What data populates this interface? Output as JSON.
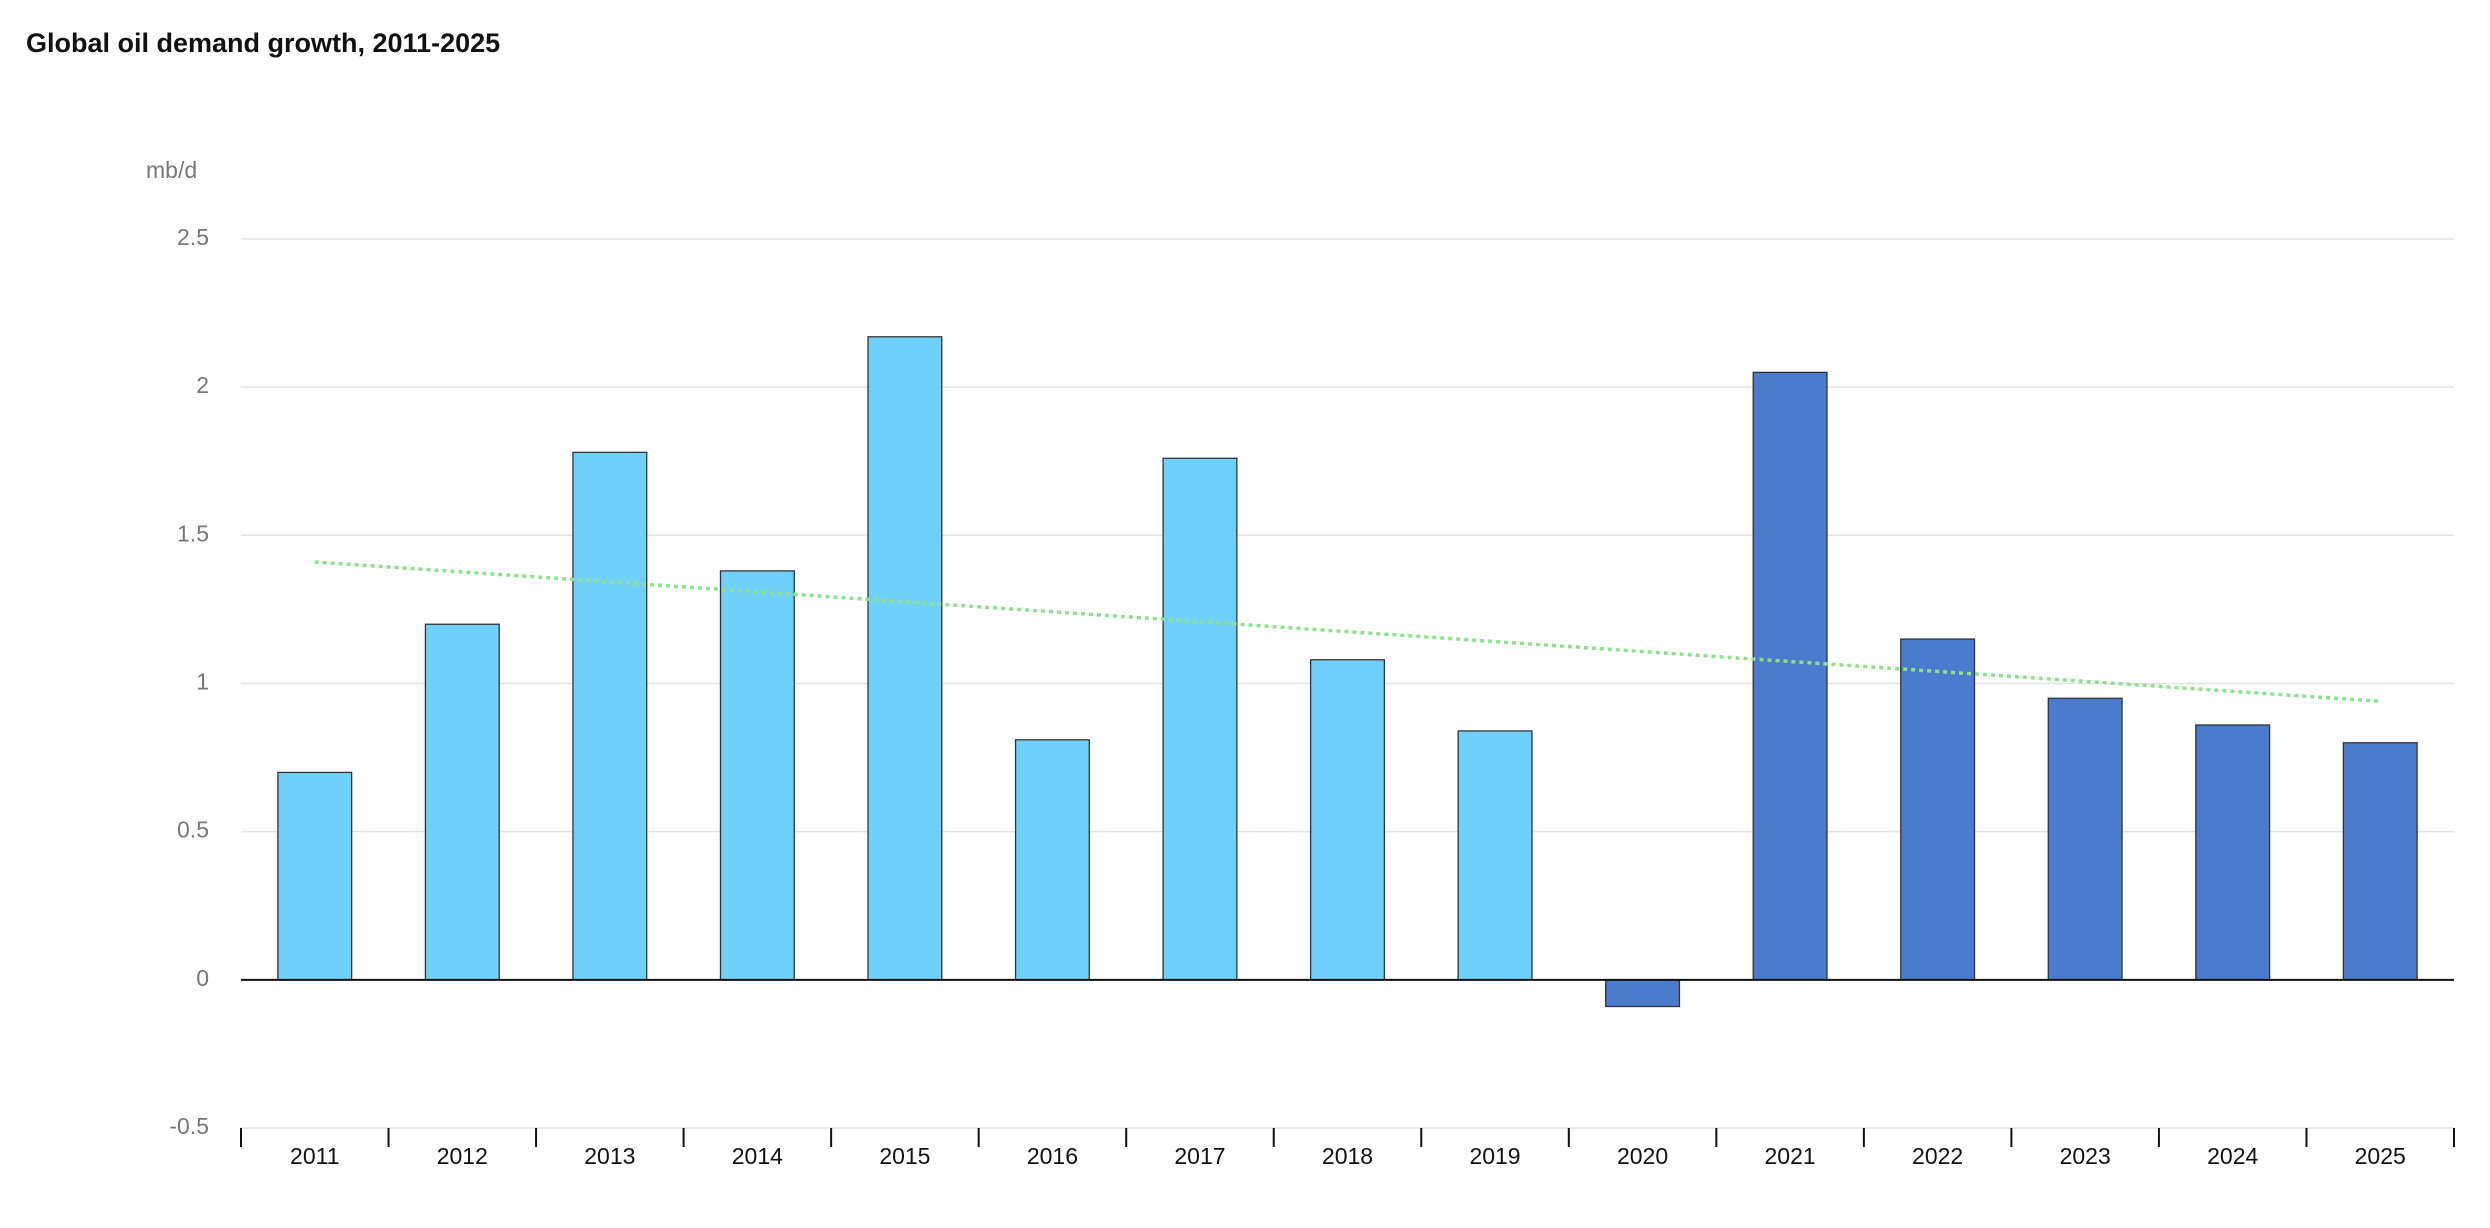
{
  "chart_data": {
    "type": "bar",
    "title": "Global oil demand growth, 2011-2025",
    "y_label": "mb/d",
    "categories": [
      "2011",
      "2012",
      "2013",
      "2014",
      "2015",
      "2016",
      "2017",
      "2018",
      "2019",
      "2020",
      "2021",
      "2022",
      "2023",
      "2024",
      "2025"
    ],
    "values": [
      0.7,
      1.2,
      1.78,
      1.38,
      2.17,
      0.81,
      1.76,
      1.08,
      0.84,
      -0.09,
      2.05,
      1.15,
      0.95,
      0.86,
      0.8
    ],
    "colors": [
      "#6fd1fa",
      "#6fd1fa",
      "#6fd1fa",
      "#6fd1fa",
      "#6fd1fa",
      "#6fd1fa",
      "#6fd1fa",
      "#6fd1fa",
      "#6fd1fa",
      "#4a7bcd",
      "#4a7bcd",
      "#4a7bcd",
      "#4a7bcd",
      "#4a7bcd",
      "#4a7bcd"
    ],
    "trendline": {
      "color": "#8ee08e",
      "values": [
        1.41,
        0.94
      ]
    },
    "ylim": [
      -0.5,
      2.5
    ],
    "yticks": [
      -0.5,
      0,
      0.5,
      1,
      1.5,
      2,
      2.5
    ],
    "grid": true
  }
}
